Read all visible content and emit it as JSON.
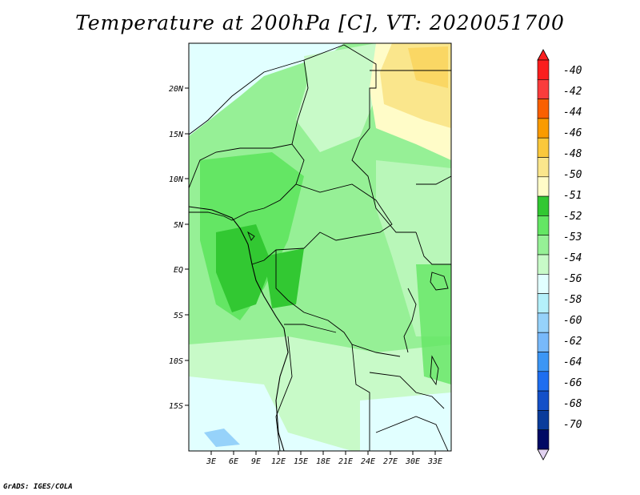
{
  "title": "Temperature at 200hPa [C], VT: 2020051700",
  "credit": "GrADS: IGES/COLA",
  "map": {
    "lat_ticks": [
      "20N",
      "15N",
      "10N",
      "5N",
      "EQ",
      "5S",
      "10S",
      "15S"
    ],
    "lon_ticks": [
      "3E",
      "6E",
      "9E",
      "12E",
      "15E",
      "18E",
      "21E",
      "24E",
      "27E",
      "30E",
      "33E"
    ],
    "extent": {
      "lon": [
        0,
        35
      ],
      "lat": [
        -20,
        25
      ]
    }
  },
  "colorbar": {
    "levels": [
      "-40",
      "-42",
      "-44",
      "-46",
      "-48",
      "-50",
      "-51",
      "-52",
      "-53",
      "-54",
      "-56",
      "-58",
      "-60",
      "-62",
      "-64",
      "-66",
      "-68",
      "-70"
    ],
    "colors": [
      "#d7ffd8",
      "#fa1e1e",
      "#fa3c3c",
      "#fa6000",
      "#fa9b00",
      "#fac83c",
      "#fae68c",
      "#fffcc8",
      "#32c832",
      "#64e664",
      "#96f096",
      "#c8fac8",
      "#e1ffff",
      "#b4f0fa",
      "#96d2fa",
      "#78b9fa",
      "#3c96f5",
      "#1e6ef0",
      "#1450c8",
      "#0a3c9b",
      "#000a64",
      "#e1d2f0"
    ]
  }
}
